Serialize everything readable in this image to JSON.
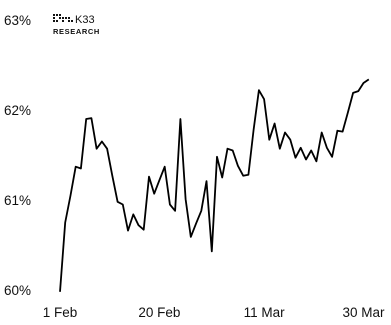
{
  "brand": {
    "name": "K33",
    "subtitle": "RESEARCH"
  },
  "colors": {
    "line": "#000000",
    "text": "#111111"
  },
  "chart_data": {
    "type": "line",
    "xlabel": "",
    "ylabel": "",
    "ylim": [
      60,
      63
    ],
    "yticks": [
      {
        "value": 63,
        "label": "63%"
      },
      {
        "value": 62,
        "label": "62%"
      },
      {
        "value": 61,
        "label": "61%"
      },
      {
        "value": 60,
        "label": "60%"
      }
    ],
    "xlim": [
      "2024-02-01",
      "2024-04-01"
    ],
    "xticks": [
      {
        "date": "2024-02-01",
        "label": "1 Feb"
      },
      {
        "date": "2024-02-20",
        "label": "20 Feb"
      },
      {
        "date": "2024-03-11",
        "label": "11 Mar"
      },
      {
        "date": "2024-03-30",
        "label": "30 Mar"
      }
    ],
    "grid": false,
    "legend": "none",
    "series": [
      {
        "x": [
          "2024-02-01",
          "2024-02-02",
          "2024-02-03",
          "2024-02-04",
          "2024-02-05",
          "2024-02-06",
          "2024-02-07",
          "2024-02-08",
          "2024-02-09",
          "2024-02-10",
          "2024-02-11",
          "2024-02-12",
          "2024-02-13",
          "2024-02-14",
          "2024-02-15",
          "2024-02-16",
          "2024-02-17",
          "2024-02-18",
          "2024-02-19",
          "2024-02-20",
          "2024-02-21",
          "2024-02-22",
          "2024-02-23",
          "2024-02-24",
          "2024-02-25",
          "2024-02-26",
          "2024-02-27",
          "2024-02-28",
          "2024-02-29",
          "2024-03-01",
          "2024-03-02",
          "2024-03-03",
          "2024-03-04",
          "2024-03-05",
          "2024-03-06",
          "2024-03-07",
          "2024-03-08",
          "2024-03-09",
          "2024-03-10",
          "2024-03-11",
          "2024-03-12",
          "2024-03-13",
          "2024-03-14",
          "2024-03-15",
          "2024-03-16",
          "2024-03-17",
          "2024-03-18",
          "2024-03-19",
          "2024-03-20",
          "2024-03-21",
          "2024-03-22",
          "2024-03-23",
          "2024-03-24",
          "2024-03-25",
          "2024-03-26",
          "2024-03-27",
          "2024-03-28",
          "2024-03-29",
          "2024-03-30",
          "2024-03-31"
        ],
        "values": [
          59.98,
          60.75,
          61.05,
          61.37,
          61.35,
          61.9,
          61.91,
          61.57,
          61.65,
          61.57,
          61.27,
          60.98,
          60.95,
          60.66,
          60.84,
          60.72,
          60.67,
          61.26,
          61.07,
          61.22,
          61.37,
          60.95,
          60.88,
          61.9,
          61.01,
          60.59,
          60.74,
          60.88,
          61.21,
          60.43,
          61.48,
          61.25,
          61.57,
          61.55,
          61.38,
          61.27,
          61.28,
          61.78,
          62.22,
          62.12,
          61.67,
          61.85,
          61.57,
          61.75,
          61.67,
          61.47,
          61.58,
          61.45,
          61.55,
          61.43,
          61.75,
          61.58,
          61.48,
          61.77,
          61.76,
          61.97,
          62.19,
          62.21,
          62.3,
          62.34
        ]
      }
    ]
  }
}
